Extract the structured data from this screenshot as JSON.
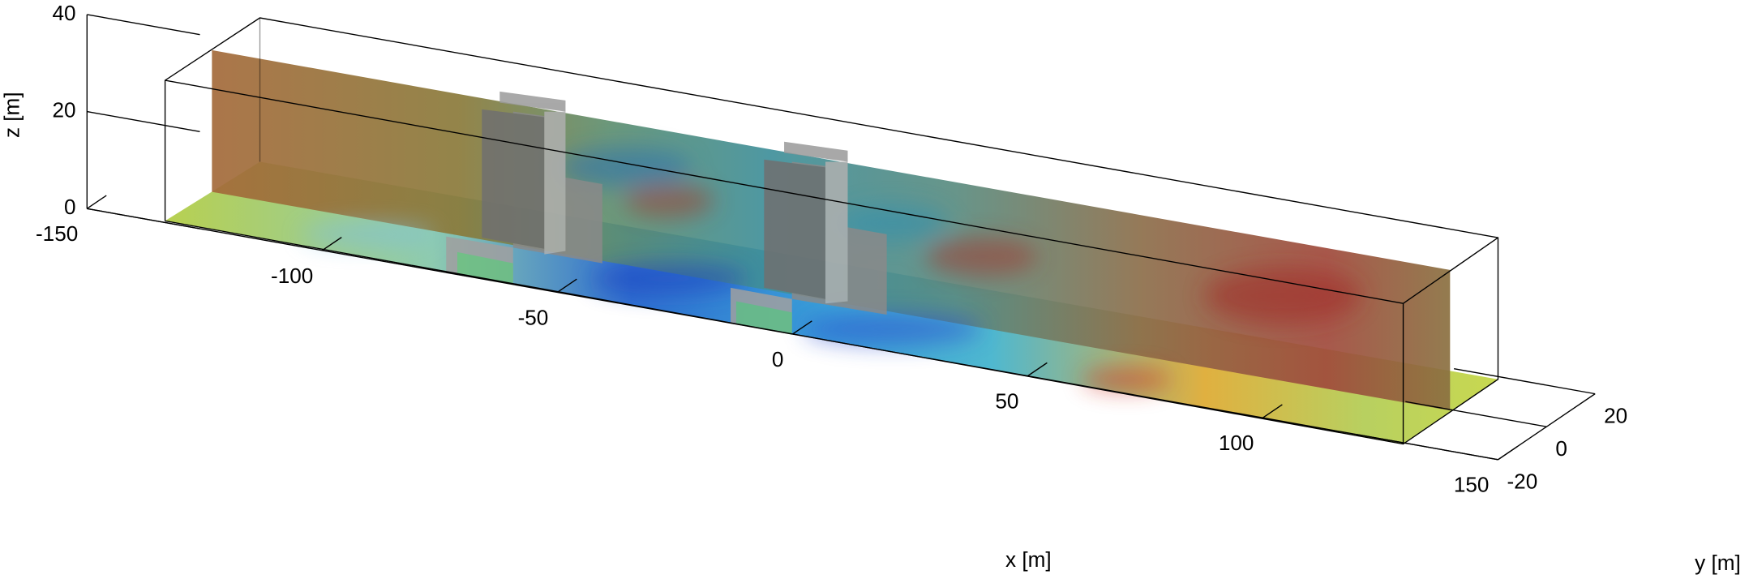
{
  "chart_data": {
    "type": "surface3d",
    "xlabel": "x [m]",
    "ylabel": "y [m]",
    "zlabel": "z [m]",
    "xlim": [
      -150,
      150
    ],
    "xticks": [
      -150,
      -100,
      -50,
      0,
      50,
      100,
      150
    ],
    "ylim": [
      -20,
      20
    ],
    "yticks": [
      -20,
      0,
      20
    ],
    "zlim": [
      0,
      40
    ],
    "zticks": [
      0,
      20,
      40
    ]
  }
}
